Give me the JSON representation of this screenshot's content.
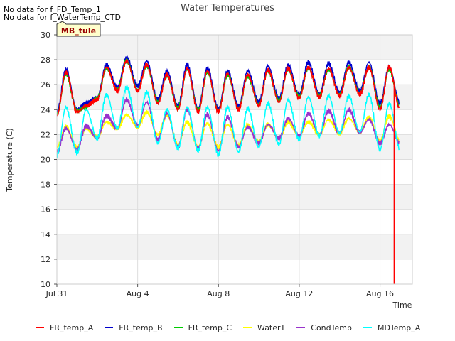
{
  "notes": [
    "No data for f_FD_Temp_1",
    "No data for f_WaterTemp_CTD"
  ],
  "badge": "MB_tule",
  "chart_data": {
    "type": "line",
    "title": "Water Temperatures",
    "xlabel": "Time",
    "ylabel": "Temperature (C)",
    "ylim": [
      10,
      30
    ],
    "yticks": [
      10,
      12,
      14,
      16,
      18,
      20,
      22,
      24,
      26,
      28,
      30
    ],
    "xlim_days": [
      0,
      17.6
    ],
    "xticks": [
      {
        "day": 0,
        "label": "Jul 31"
      },
      {
        "day": 4,
        "label": "Aug 4"
      },
      {
        "day": 8,
        "label": "Aug 8"
      },
      {
        "day": 12,
        "label": "Aug 12"
      },
      {
        "day": 16,
        "label": "Aug 16"
      }
    ],
    "grid": true,
    "legend_position": "bottom",
    "series": [
      {
        "name": "FR_temp_A",
        "color": "#ff0000",
        "daily_max": [
          27.0,
          24.3,
          27.4,
          27.9,
          27.6,
          26.8,
          27.3,
          27.1,
          26.9,
          26.8,
          27.2,
          27.3,
          27.4,
          27.3,
          27.4,
          27.4,
          27.4
        ],
        "daily_min": [
          23.5,
          23.8,
          24.8,
          25.5,
          25.5,
          24.5,
          24.0,
          23.8,
          23.8,
          24.0,
          24.3,
          24.6,
          24.9,
          25.0,
          25.1,
          25.2,
          24.0
        ],
        "drop_day": 16.7,
        "drop_to": 10
      },
      {
        "name": "FR_temp_B",
        "color": "#0000cc",
        "daily_max": [
          27.2,
          24.5,
          27.6,
          28.2,
          27.9,
          27.1,
          27.6,
          27.3,
          27.1,
          27.1,
          27.5,
          27.6,
          27.8,
          27.7,
          27.8,
          27.8,
          27.4
        ],
        "daily_min": [
          23.8,
          24.0,
          25.0,
          25.8,
          25.9,
          24.8,
          24.3,
          24.1,
          24.1,
          24.3,
          24.6,
          24.9,
          25.2,
          25.3,
          25.4,
          25.5,
          24.5
        ]
      },
      {
        "name": "FR_temp_C",
        "color": "#00cc00",
        "daily_max": [
          26.8,
          24.2,
          27.3,
          27.9,
          27.5,
          26.7,
          27.2,
          27.0,
          26.8,
          26.7,
          27.1,
          27.2,
          27.3,
          27.2,
          27.4,
          27.4,
          27.2
        ],
        "daily_min": [
          23.6,
          23.9,
          24.9,
          25.6,
          25.6,
          24.6,
          24.1,
          23.9,
          23.9,
          24.1,
          24.4,
          24.7,
          25.0,
          25.1,
          25.2,
          25.3,
          24.2
        ]
      },
      {
        "name": "WaterT",
        "color": "#ffff00",
        "daily_max": [
          22.6,
          22.5,
          23.0,
          23.6,
          23.8,
          23.6,
          23.0,
          22.9,
          22.8,
          22.8,
          22.8,
          23.0,
          23.0,
          23.2,
          23.3,
          23.4,
          23.5
        ],
        "daily_min": [
          21.0,
          21.0,
          21.8,
          22.5,
          22.6,
          22.0,
          21.2,
          21.0,
          21.0,
          21.1,
          21.4,
          21.7,
          21.9,
          22.0,
          22.1,
          22.2,
          21.5
        ]
      },
      {
        "name": "CondTemp",
        "color": "#9933cc",
        "daily_max": [
          22.5,
          22.7,
          23.5,
          24.8,
          24.6,
          23.7,
          24.0,
          23.6,
          23.4,
          22.6,
          22.8,
          23.3,
          23.7,
          23.9,
          24.0,
          23.2,
          22.8
        ],
        "daily_min": [
          20.6,
          20.8,
          21.7,
          22.5,
          22.7,
          21.6,
          21.0,
          20.9,
          20.7,
          21.0,
          21.3,
          21.7,
          21.9,
          22.0,
          22.1,
          22.2,
          21.3
        ]
      },
      {
        "name": "MDTemp_A",
        "color": "#00ffff",
        "daily_max": [
          24.2,
          24.0,
          25.2,
          25.8,
          25.4,
          24.0,
          24.2,
          24.2,
          24.2,
          24.1,
          24.5,
          24.8,
          25.0,
          25.1,
          25.1,
          25.2,
          24.5
        ],
        "daily_min": [
          20.3,
          20.5,
          21.7,
          22.5,
          22.6,
          21.3,
          20.9,
          20.7,
          20.4,
          20.6,
          21.0,
          21.2,
          21.6,
          21.9,
          22.1,
          22.2,
          20.8
        ]
      }
    ]
  }
}
